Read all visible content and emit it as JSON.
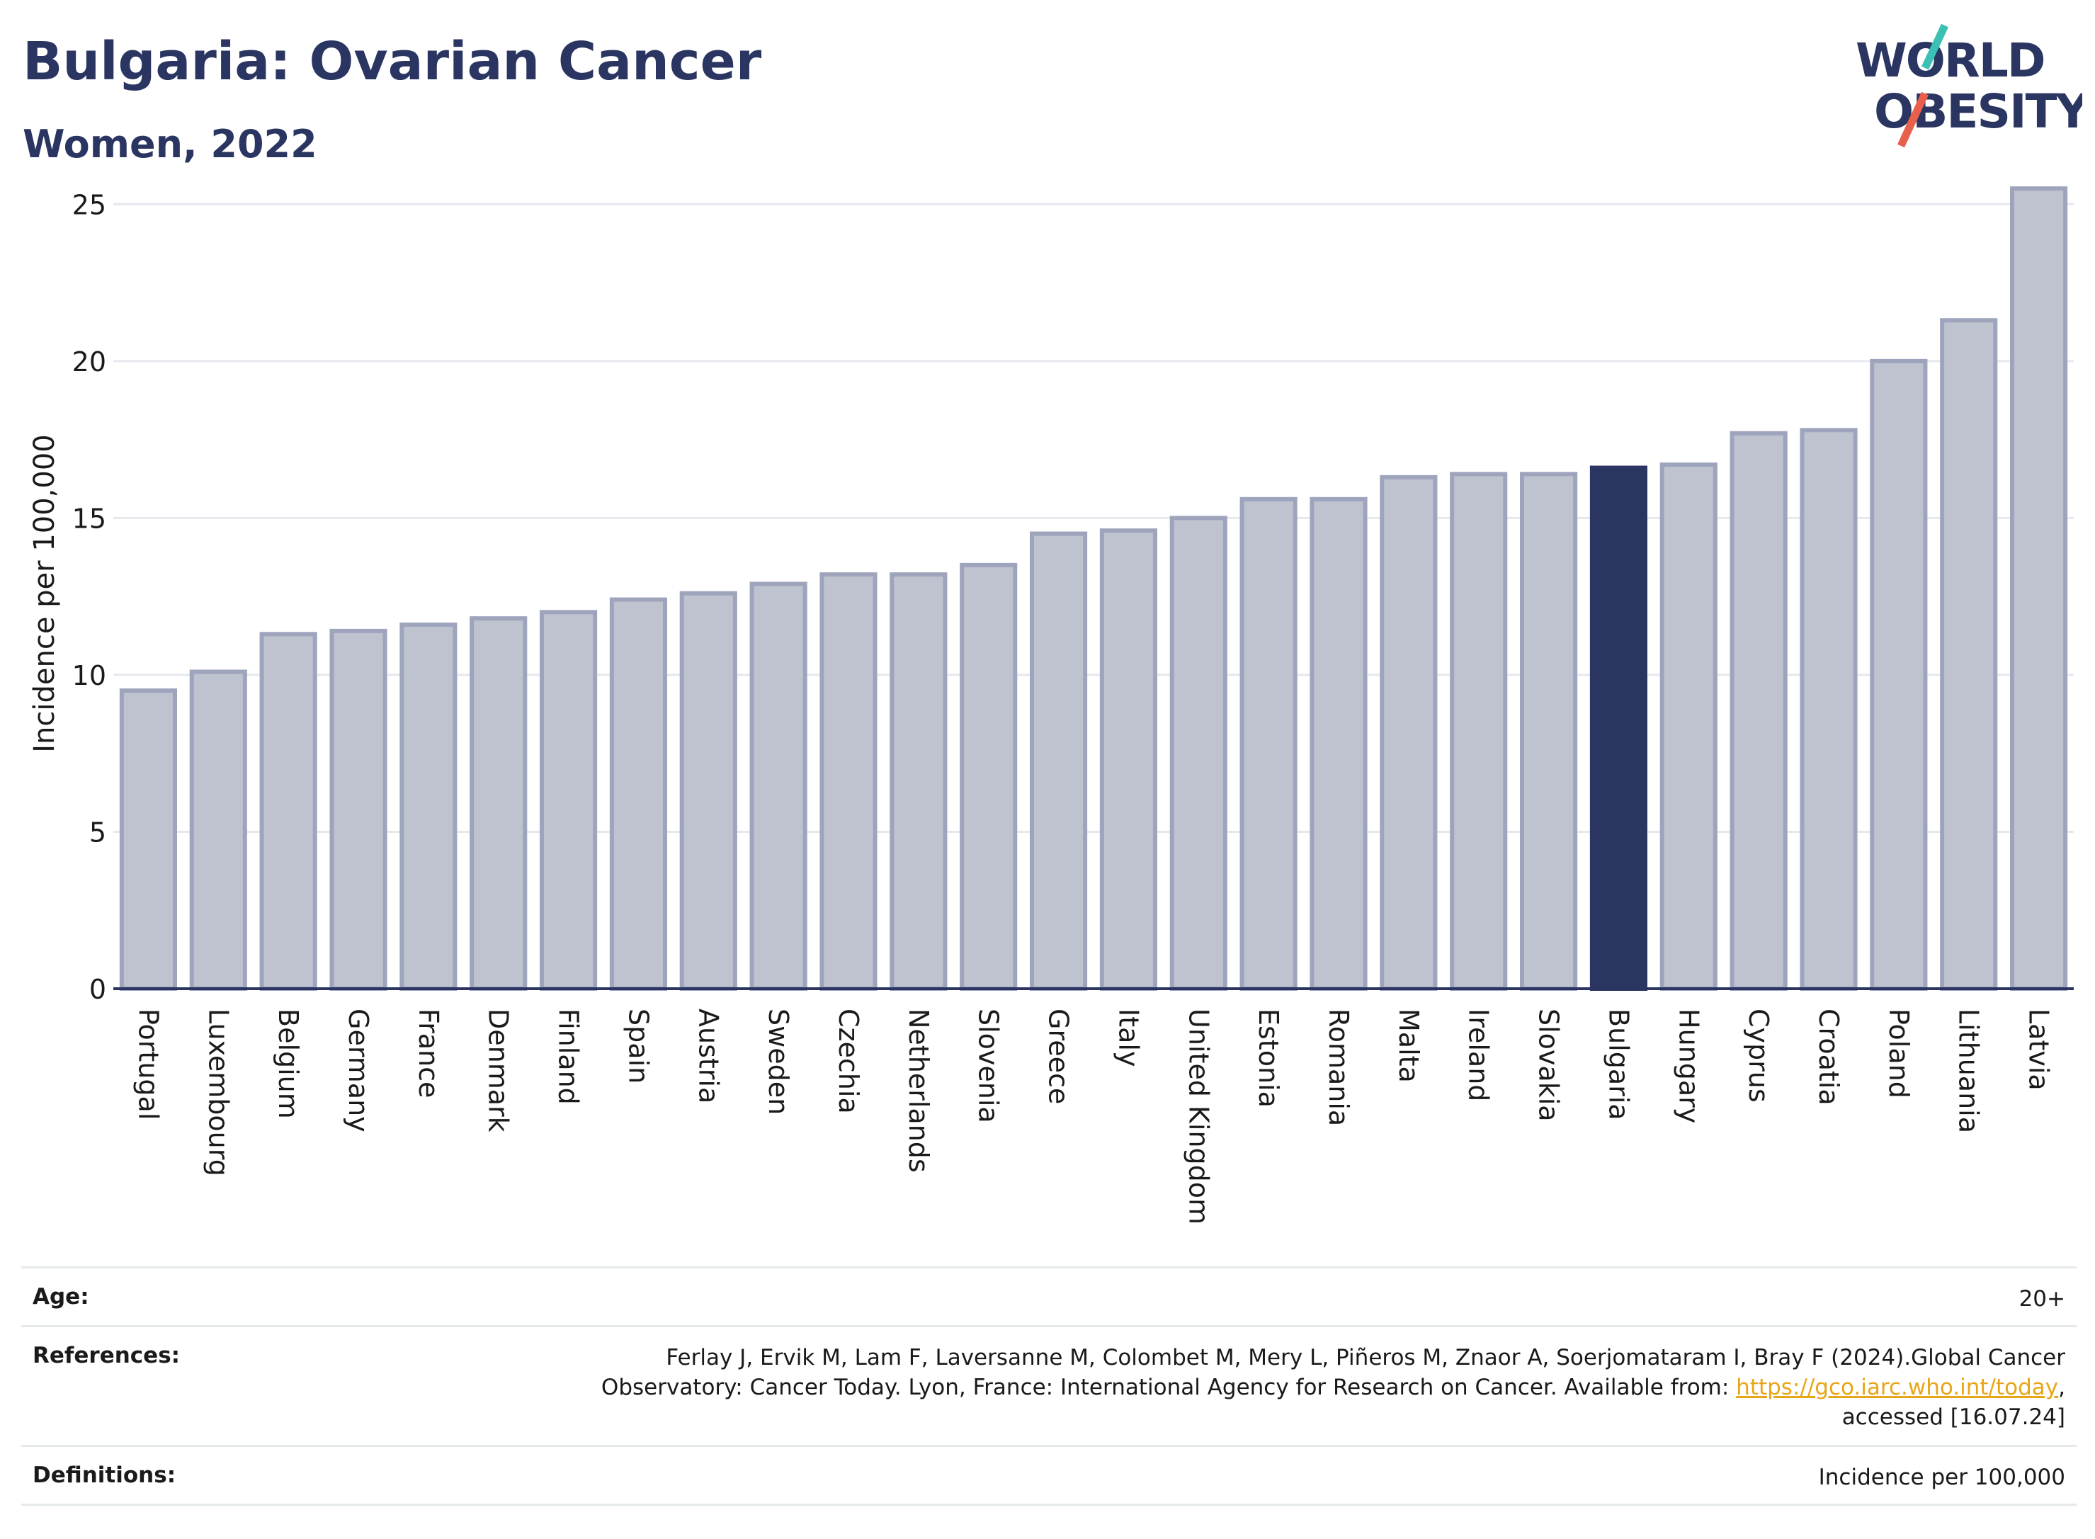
{
  "header": {
    "title": "Bulgaria: Ovarian Cancer",
    "subtitle": "Women, 2022"
  },
  "logo": {
    "line1": "WORLD",
    "line2": "OBESITY",
    "slash_colors": [
      "#3cbfb4",
      "#e8604c"
    ],
    "text_color": "#2b3561"
  },
  "colors": {
    "bar_default": "#bfc3d0",
    "bar_border": "#9ea4bc",
    "bar_highlight": "#2b3561",
    "grid": "#e6e8ee",
    "axis": "#2b3561",
    "link": "#e8a617"
  },
  "chart_data": {
    "type": "bar",
    "ylabel": "Incidence per 100,000",
    "xlabel": "",
    "ylim": [
      0,
      26
    ],
    "yticks": [
      0,
      5,
      10,
      15,
      20,
      25
    ],
    "grid": true,
    "highlight": "Bulgaria",
    "categories": [
      "Portugal",
      "Luxembourg",
      "Belgium",
      "Germany",
      "France",
      "Denmark",
      "Finland",
      "Spain",
      "Austria",
      "Sweden",
      "Czechia",
      "Netherlands",
      "Slovenia",
      "Greece",
      "Italy",
      "United Kingdom",
      "Estonia",
      "Romania",
      "Malta",
      "Ireland",
      "Slovakia",
      "Bulgaria",
      "Hungary",
      "Cyprus",
      "Croatia",
      "Poland",
      "Lithuania",
      "Latvia"
    ],
    "values": [
      9.5,
      10.1,
      11.3,
      11.4,
      11.6,
      11.8,
      12.0,
      12.4,
      12.6,
      12.9,
      13.2,
      13.2,
      13.5,
      14.5,
      14.6,
      15.0,
      15.6,
      15.6,
      16.3,
      16.4,
      16.4,
      16.6,
      16.7,
      17.7,
      17.8,
      20.0,
      21.3,
      25.5
    ]
  },
  "info": {
    "age_label": "Age:",
    "age_value": "20+",
    "references_label": "References:",
    "references_line1": "Ferlay J, Ervik M, Lam F, Laversanne M, Colombet M, Mery L, Piñeros M, Znaor A, Soerjomataram I, Bray F (2024).Global Cancer",
    "references_line2_text": "Observatory: Cancer Today. Lyon, France: International Agency for Research on Cancer. Available from: ",
    "references_link": "https://gco.iarc.who.int/today",
    "references_line2_suffix": ",",
    "references_line3": "accessed [16.07.24]",
    "definitions_label": "Definitions:",
    "definitions_value": "Incidence per 100,000"
  }
}
